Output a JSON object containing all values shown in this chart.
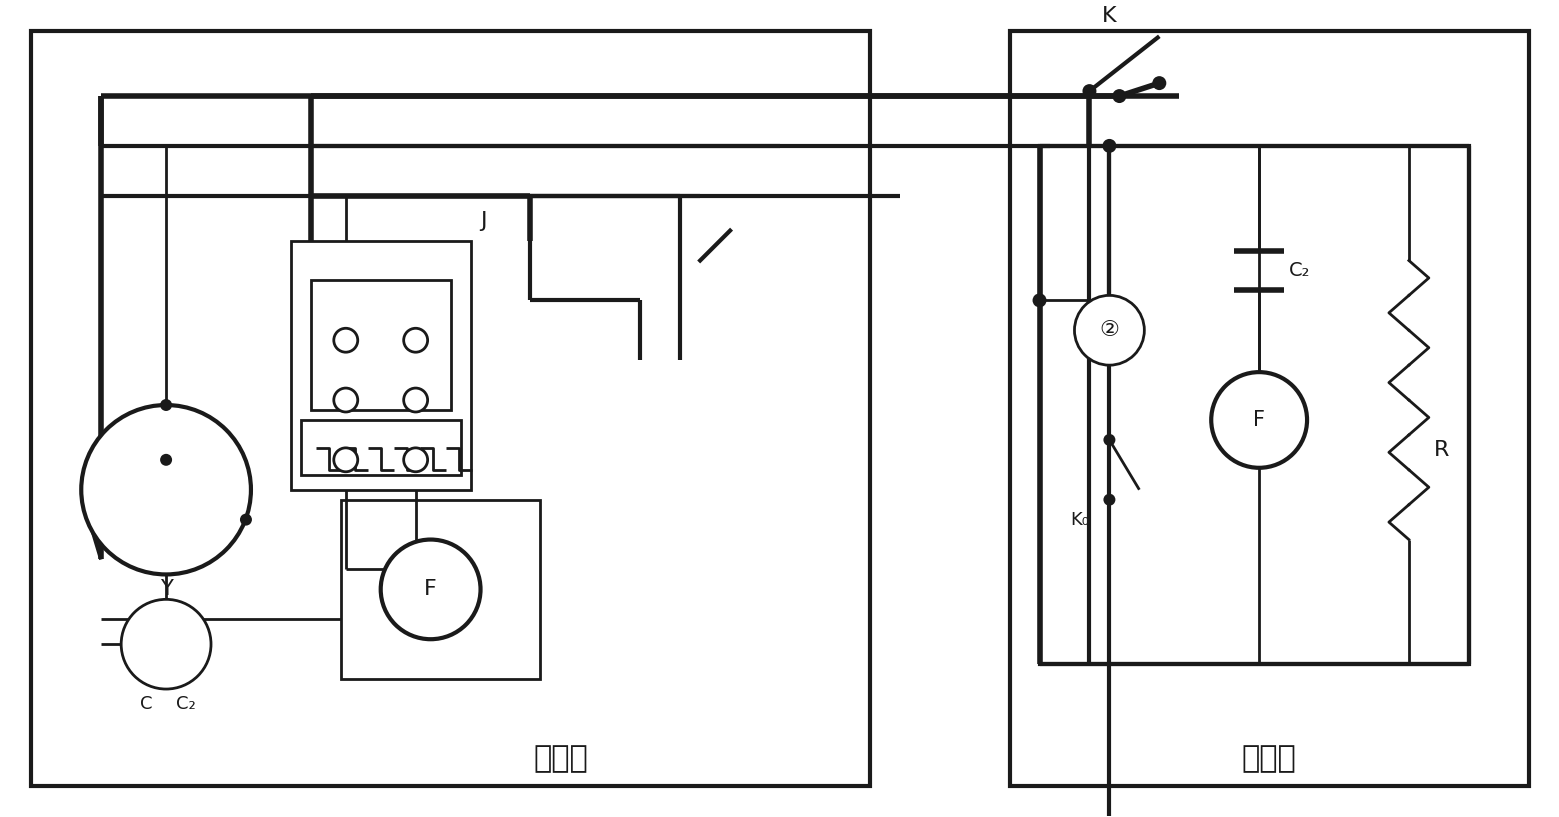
{
  "bg_color": "#ffffff",
  "line_color": "#1a1a1a",
  "fig_width": 15.59,
  "fig_height": 8.17,
  "label_outdoor": "室外机",
  "label_indoor": "室内机",
  "label_J": "J",
  "label_Y": "Y",
  "label_F_outdoor": "F",
  "label_F_indoor": "F",
  "label_C": "C",
  "label_C2_outdoor": "C₂",
  "label_C2_indoor": "C₂",
  "label_K_top": "K",
  "label_K_bottom": "K₀",
  "label_R": "R",
  "label_2": "②"
}
